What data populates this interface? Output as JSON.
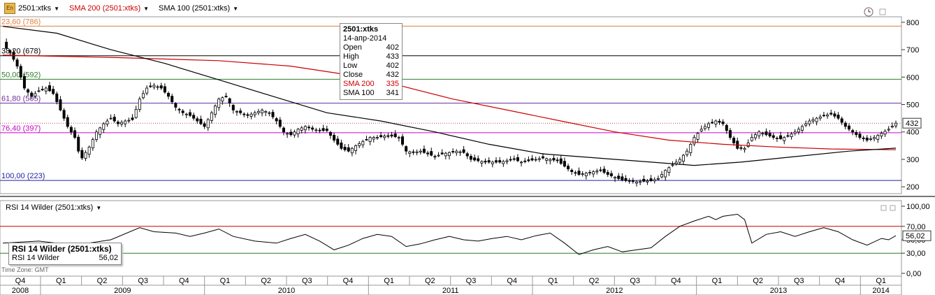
{
  "toolbar": {
    "icon_label": "En",
    "symbol": "2501:xtks",
    "sma200": "SMA 200 (2501:xtks)",
    "sma100": "SMA 100 (2501:xtks)",
    "colors": {
      "sma200": "#cc0000",
      "sma100": "#000000"
    }
  },
  "tooltip": {
    "title": "2501:xtks",
    "date": "14-апр-2014",
    "rows": [
      {
        "label": "Open",
        "value": "402"
      },
      {
        "label": "High",
        "value": "433"
      },
      {
        "label": "Low",
        "value": "402"
      },
      {
        "label": "Close",
        "value": "432"
      },
      {
        "label": "SMA 200",
        "value": "335"
      },
      {
        "label": "SMA 100",
        "value": "341"
      }
    ]
  },
  "rsi_panel": {
    "header": "RSI 14 Wilder (2501:xtks)",
    "box_title": "RSI 14 Wilder (2501:xtks)",
    "box_label": "RSI 14 Wilder",
    "box_value": "56,02",
    "time_zone": "Time Zone: GMT"
  },
  "chart_data": [
    {
      "type": "candlestick",
      "ylim": [
        175,
        820
      ],
      "y_ticks": [
        "200",
        "300",
        "400",
        "500",
        "600",
        "700",
        "800"
      ],
      "last_price_label": "432",
      "fib_levels": [
        {
          "label": "23,60 (786)",
          "value": 786,
          "color": "#e08040"
        },
        {
          "label": "38,20 (678)",
          "value": 678,
          "color": "#000000"
        },
        {
          "label": "50,00 (592)",
          "value": 592,
          "color": "#2e7d2e"
        },
        {
          "label": "61,80 (505)",
          "value": 505,
          "color": "#7030a0"
        },
        {
          "label": "76,40 (397)",
          "value": 397,
          "color": "#cc00cc"
        },
        {
          "label": "100,00 (223)",
          "value": 223,
          "color": "#2020a0"
        }
      ],
      "close_path": [
        [
          0,
          720
        ],
        [
          2,
          690
        ],
        [
          4,
          640
        ],
        [
          6,
          560
        ],
        [
          8,
          530
        ],
        [
          10,
          550
        ],
        [
          12,
          560
        ],
        [
          14,
          540
        ],
        [
          16,
          480
        ],
        [
          18,
          420
        ],
        [
          20,
          380
        ],
        [
          21,
          330
        ],
        [
          22,
          305
        ],
        [
          24,
          345
        ],
        [
          26,
          400
        ],
        [
          28,
          430
        ],
        [
          30,
          450
        ],
        [
          32,
          430
        ],
        [
          34,
          440
        ],
        [
          36,
          445
        ],
        [
          38,
          520
        ],
        [
          40,
          560
        ],
        [
          42,
          570
        ],
        [
          44,
          560
        ],
        [
          46,
          530
        ],
        [
          48,
          490
        ],
        [
          50,
          470
        ],
        [
          52,
          460
        ],
        [
          54,
          440
        ],
        [
          56,
          420
        ],
        [
          58,
          470
        ],
        [
          60,
          520
        ],
        [
          62,
          530
        ],
        [
          64,
          480
        ],
        [
          66,
          470
        ],
        [
          68,
          460
        ],
        [
          70,
          470
        ],
        [
          72,
          480
        ],
        [
          74,
          470
        ],
        [
          76,
          440
        ],
        [
          78,
          400
        ],
        [
          80,
          390
        ],
        [
          82,
          410
        ],
        [
          84,
          420
        ],
        [
          86,
          410
        ],
        [
          88,
          405
        ],
        [
          90,
          405
        ],
        [
          92,
          370
        ],
        [
          94,
          340
        ],
        [
          96,
          330
        ],
        [
          98,
          350
        ],
        [
          100,
          365
        ],
        [
          102,
          380
        ],
        [
          104,
          380
        ],
        [
          106,
          385
        ],
        [
          108,
          385
        ],
        [
          110,
          380
        ],
        [
          112,
          330
        ],
        [
          114,
          325
        ],
        [
          116,
          330
        ],
        [
          118,
          320
        ],
        [
          120,
          310
        ],
        [
          122,
          320
        ],
        [
          124,
          325
        ],
        [
          126,
          330
        ],
        [
          128,
          325
        ],
        [
          130,
          300
        ],
        [
          132,
          295
        ],
        [
          134,
          290
        ],
        [
          136,
          290
        ],
        [
          138,
          290
        ],
        [
          140,
          295
        ],
        [
          142,
          300
        ],
        [
          144,
          290
        ],
        [
          146,
          295
        ],
        [
          148,
          300
        ],
        [
          150,
          305
        ],
        [
          152,
          300
        ],
        [
          154,
          295
        ],
        [
          156,
          275
        ],
        [
          158,
          255
        ],
        [
          160,
          245
        ],
        [
          162,
          250
        ],
        [
          164,
          255
        ],
        [
          166,
          260
        ],
        [
          168,
          245
        ],
        [
          170,
          235
        ],
        [
          172,
          225
        ],
        [
          174,
          220
        ],
        [
          176,
          218
        ],
        [
          178,
          220
        ],
        [
          180,
          222
        ],
        [
          182,
          230
        ],
        [
          184,
          260
        ],
        [
          186,
          280
        ],
        [
          188,
          300
        ],
        [
          190,
          330
        ],
        [
          192,
          380
        ],
        [
          194,
          410
        ],
        [
          196,
          430
        ],
        [
          198,
          440
        ],
        [
          200,
          430
        ],
        [
          202,
          380
        ],
        [
          204,
          340
        ],
        [
          206,
          340
        ],
        [
          208,
          380
        ],
        [
          210,
          400
        ],
        [
          212,
          390
        ],
        [
          214,
          380
        ],
        [
          216,
          375
        ],
        [
          218,
          385
        ],
        [
          220,
          400
        ],
        [
          222,
          420
        ],
        [
          224,
          440
        ],
        [
          226,
          450
        ],
        [
          228,
          460
        ],
        [
          230,
          465
        ],
        [
          232,
          450
        ],
        [
          234,
          420
        ],
        [
          236,
          400
        ],
        [
          238,
          380
        ],
        [
          240,
          370
        ],
        [
          242,
          380
        ],
        [
          244,
          395
        ],
        [
          246,
          410
        ],
        [
          248,
          432
        ]
      ],
      "sma200": [
        [
          0,
          680
        ],
        [
          30,
          672
        ],
        [
          60,
          660
        ],
        [
          80,
          640
        ],
        [
          95,
          610
        ],
        [
          110,
          570
        ],
        [
          125,
          520
        ],
        [
          140,
          480
        ],
        [
          155,
          440
        ],
        [
          170,
          400
        ],
        [
          185,
          370
        ],
        [
          200,
          355
        ],
        [
          215,
          345
        ],
        [
          230,
          338
        ],
        [
          248,
          335
        ]
      ],
      "sma100": [
        [
          0,
          785
        ],
        [
          15,
          760
        ],
        [
          30,
          700
        ],
        [
          45,
          650
        ],
        [
          60,
          590
        ],
        [
          75,
          530
        ],
        [
          90,
          470
        ],
        [
          105,
          440
        ],
        [
          120,
          400
        ],
        [
          135,
          355
        ],
        [
          150,
          320
        ],
        [
          165,
          305
        ],
        [
          180,
          290
        ],
        [
          192,
          278
        ],
        [
          205,
          290
        ],
        [
          220,
          310
        ],
        [
          235,
          330
        ],
        [
          248,
          341
        ]
      ],
      "x_quarters": [
        "Q4",
        "Q1",
        "Q2",
        "Q3",
        "Q4",
        "Q1",
        "Q2",
        "Q3",
        "Q4",
        "Q1",
        "Q2",
        "Q3",
        "Q4",
        "Q1",
        "Q2",
        "Q3",
        "Q4",
        "Q1",
        "Q2",
        "Q3",
        "Q4",
        "Q1"
      ],
      "x_years": [
        "2008",
        "2009",
        "2010",
        "2011",
        "2012",
        "2013",
        "2014"
      ]
    },
    {
      "type": "line",
      "ylim": [
        0,
        100
      ],
      "y_ticks": [
        "0,00",
        "30,00",
        "50,00",
        "70,00",
        "100,00"
      ],
      "levels": [
        30,
        70
      ],
      "last_value_label": "56,02",
      "series": [
        [
          0,
          45
        ],
        [
          10,
          48
        ],
        [
          20,
          42
        ],
        [
          30,
          50
        ],
        [
          38,
          68
        ],
        [
          42,
          62
        ],
        [
          48,
          60
        ],
        [
          52,
          55
        ],
        [
          56,
          60
        ],
        [
          60,
          66
        ],
        [
          64,
          55
        ],
        [
          70,
          48
        ],
        [
          76,
          45
        ],
        [
          80,
          52
        ],
        [
          84,
          58
        ],
        [
          88,
          48
        ],
        [
          92,
          35
        ],
        [
          96,
          42
        ],
        [
          100,
          52
        ],
        [
          104,
          58
        ],
        [
          108,
          55
        ],
        [
          112,
          40
        ],
        [
          116,
          44
        ],
        [
          120,
          50
        ],
        [
          124,
          55
        ],
        [
          128,
          50
        ],
        [
          132,
          48
        ],
        [
          136,
          52
        ],
        [
          140,
          55
        ],
        [
          144,
          50
        ],
        [
          148,
          56
        ],
        [
          152,
          60
        ],
        [
          156,
          45
        ],
        [
          160,
          28
        ],
        [
          164,
          35
        ],
        [
          168,
          40
        ],
        [
          172,
          32
        ],
        [
          176,
          35
        ],
        [
          180,
          38
        ],
        [
          184,
          55
        ],
        [
          188,
          70
        ],
        [
          192,
          78
        ],
        [
          196,
          85
        ],
        [
          198,
          80
        ],
        [
          200,
          85
        ],
        [
          204,
          88
        ],
        [
          206,
          80
        ],
        [
          208,
          45
        ],
        [
          212,
          58
        ],
        [
          216,
          62
        ],
        [
          220,
          55
        ],
        [
          224,
          62
        ],
        [
          228,
          68
        ],
        [
          232,
          62
        ],
        [
          236,
          50
        ],
        [
          240,
          42
        ],
        [
          244,
          52
        ],
        [
          246,
          50
        ],
        [
          248,
          56
        ]
      ]
    }
  ]
}
